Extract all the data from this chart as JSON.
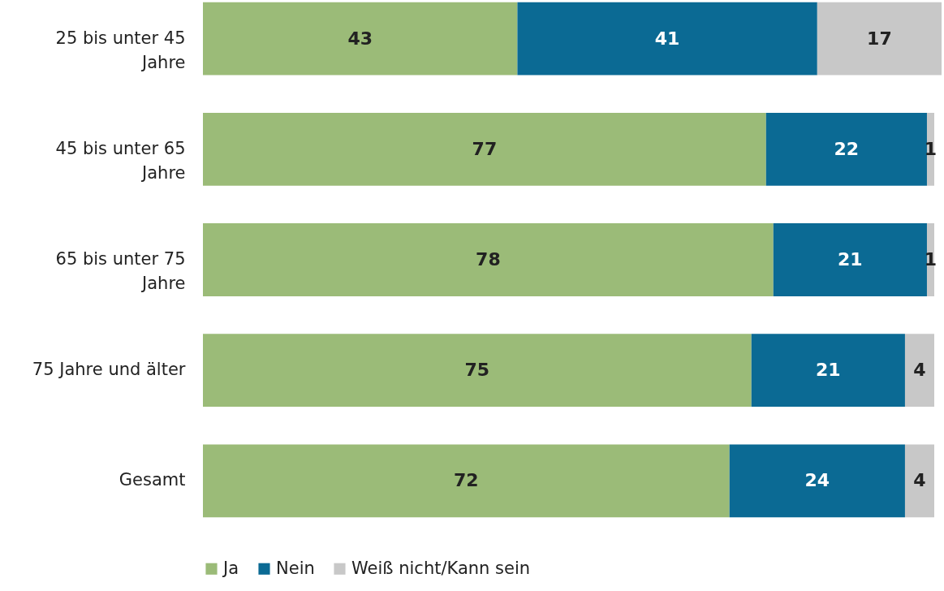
{
  "chart_data": {
    "type": "bar",
    "orientation": "horizontal",
    "stacked": true,
    "data_labels": true,
    "legend": "bottom",
    "grid": false,
    "categories": [
      "25 bis unter 45 Jahre",
      "45 bis unter 65 Jahre",
      "65 bis unter 75 Jahre",
      "75 Jahre und älter",
      "Gesamt"
    ],
    "series": [
      {
        "name": "Ja",
        "color": "#9bbb78",
        "values": [
          43,
          77,
          78,
          75,
          72
        ]
      },
      {
        "name": "Nein",
        "color": "#0b6a94",
        "values": [
          41,
          22,
          21,
          21,
          24
        ]
      },
      {
        "name": "Weiß nicht/Kann sein",
        "color": "#c8c8c8",
        "values": [
          17,
          1,
          1,
          4,
          4
        ]
      }
    ]
  }
}
